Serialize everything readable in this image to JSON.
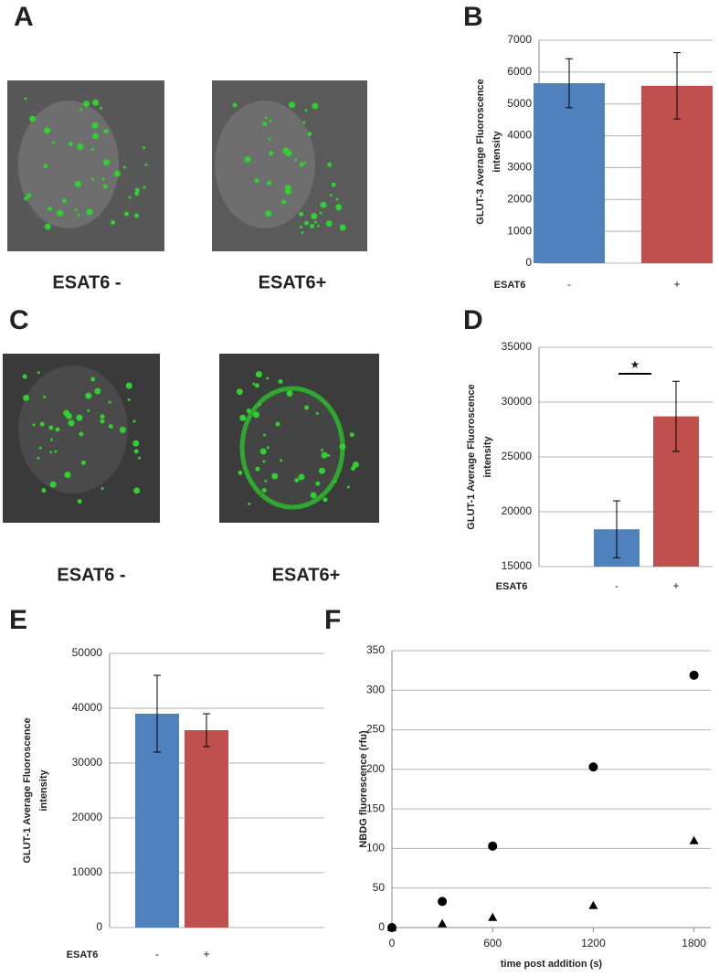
{
  "panel_labels": [
    "A",
    "B",
    "C",
    "D",
    "E",
    "F"
  ],
  "image_captions": [
    "ESAT6 -",
    "ESAT6+",
    "ESAT6 -",
    "ESAT6+"
  ],
  "chart_data": [
    {
      "type": "bar",
      "ylabel": [
        "GLUT-3  Average Fluoroscence",
        "intensity"
      ],
      "xlabel": "ESAT6",
      "categories": [
        "-",
        "+"
      ],
      "values": [
        5650,
        5570
      ],
      "errors": [
        770,
        1040
      ],
      "colors": [
        "#4f81bd",
        "#c0504d"
      ],
      "ylim": [
        0,
        7000
      ],
      "yticks": [
        0,
        1000,
        2000,
        3000,
        4000,
        5000,
        6000,
        7000
      ],
      "grid": true
    },
    {
      "type": "bar",
      "ylabel": [
        "GLUT-1  Average Fluoroscence",
        "intensity"
      ],
      "xlabel": "ESAT6",
      "categories": [
        "-",
        "+"
      ],
      "values": [
        18400,
        28700
      ],
      "errors": [
        2600,
        3200
      ],
      "colors": [
        "#4f81bd",
        "#c0504d"
      ],
      "ylim": [
        15000,
        35000
      ],
      "yticks": [
        15000,
        20000,
        25000,
        30000,
        35000
      ],
      "grid": true,
      "significance": "★"
    },
    {
      "type": "bar",
      "ylabel": [
        "GLUT-1  Average Fluoroscence",
        "intensity"
      ],
      "xlabel": "ESAT6",
      "categories": [
        "-",
        "+"
      ],
      "values": [
        39000,
        36000
      ],
      "errors": [
        7000,
        3000
      ],
      "colors": [
        "#4f81bd",
        "#c0504d"
      ],
      "ylim": [
        0,
        50000
      ],
      "yticks": [
        0,
        10000,
        20000,
        30000,
        40000,
        50000
      ],
      "grid": true
    },
    {
      "type": "scatter",
      "ylabel": "NBDG fluorescence (rfu)",
      "xlabel": "time post addition (s)",
      "x": [
        0,
        300,
        600,
        1200,
        1800
      ],
      "series": [
        {
          "marker": "circle",
          "color": "#000000",
          "values": [
            0,
            33,
            103,
            203,
            319
          ]
        },
        {
          "marker": "triangle",
          "color": "#000000",
          "values": [
            0,
            5,
            13,
            28,
            110
          ]
        }
      ],
      "xlim": [
        0,
        1900
      ],
      "xticks": [
        0,
        600,
        1200,
        1800
      ],
      "ylim": [
        0,
        350
      ],
      "yticks": [
        0,
        50,
        100,
        150,
        200,
        250,
        300,
        350
      ],
      "grid": true
    }
  ]
}
